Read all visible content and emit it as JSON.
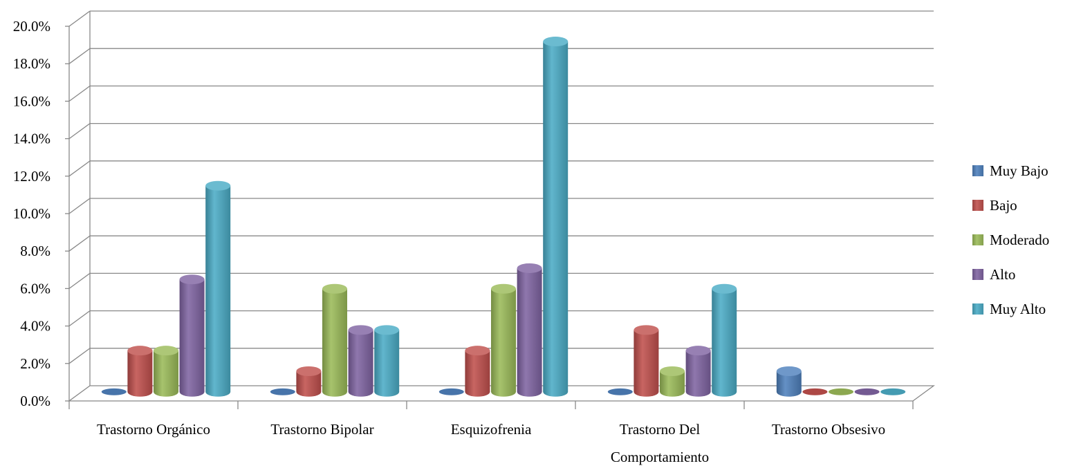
{
  "chart_data": {
    "type": "bar",
    "subtype": "3d-cylinder-clustered",
    "categories": [
      "Trastorno Orgánico",
      "Trastorno Bipolar",
      "Esquizofrenia",
      "Trastorno Del Comportamiento",
      "Trastorno Obsesivo"
    ],
    "category_label_lines": [
      [
        "Trastorno Orgánico"
      ],
      [
        "Trastorno Bipolar"
      ],
      [
        "Esquizofrenia"
      ],
      [
        "Trastorno Del",
        "Comportamiento"
      ],
      [
        "Trastorno Obsesivo"
      ]
    ],
    "series": [
      {
        "name": "Muy Bajo",
        "color": "#4F81BD",
        "values": [
          0.0,
          0.0,
          0.0,
          0.0,
          1.1
        ]
      },
      {
        "name": "Bajo",
        "color": "#C0504D",
        "values": [
          2.2,
          1.1,
          2.2,
          3.3,
          0.0
        ]
      },
      {
        "name": "Moderado",
        "color": "#9BBB59",
        "values": [
          2.2,
          5.5,
          5.5,
          1.1,
          0.0
        ]
      },
      {
        "name": "Alto",
        "color": "#8064A2",
        "values": [
          6.0,
          3.3,
          6.6,
          2.2,
          0.0
        ]
      },
      {
        "name": "Muy Alto",
        "color": "#4BACC6",
        "values": [
          11.0,
          3.3,
          18.7,
          5.5,
          0.0
        ]
      }
    ],
    "ylim": [
      0,
      20
    ],
    "ytick_values": [
      0,
      2,
      4,
      6,
      8,
      10,
      12,
      14,
      16,
      18,
      20
    ],
    "ytick_labels": [
      "0.0%",
      "2.0%",
      "4.0%",
      "6.0%",
      "8.0%",
      "10.0%",
      "12.0%",
      "14.0%",
      "16.0%",
      "18.0%",
      "20.0%"
    ],
    "title": "",
    "xlabel": "",
    "ylabel": "",
    "grid": true,
    "legend_position": "right"
  }
}
